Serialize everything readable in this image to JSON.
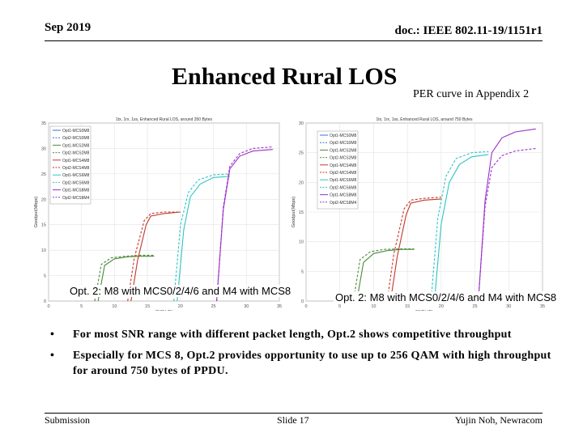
{
  "header": {
    "date": "Sep 2019",
    "doc": "doc.: IEEE 802.11-19/1151r1"
  },
  "slide": {
    "title": "Enhanced Rural LOS",
    "subtitle": "PER curve in Appendix 2"
  },
  "charts": [
    {
      "caption": "Opt. 2: M8 with MCS0/2/4/6 and M4 with MCS8"
    },
    {
      "caption": "Opt. 2: M8 with MCS0/2/4/6 and M4 with MCS8"
    }
  ],
  "chart_data": [
    {
      "type": "line",
      "title": "1tx, 1rx, 1ss, Enhanced Rural LOS, around 350 Bytes",
      "xlabel": "SNR(dB)",
      "ylabel": "Goodput(Mbps)",
      "xlim": [
        0,
        35
      ],
      "ylim": [
        0,
        35
      ],
      "xticks": [
        0,
        5,
        10,
        15,
        20,
        25,
        30,
        35
      ],
      "yticks": [
        0,
        5,
        10,
        15,
        20,
        25,
        30,
        35
      ],
      "grid": true,
      "legend_position": "top-left",
      "legend": [
        "Opt1-MCS0M8",
        "Opt2-MCS0M8",
        "Opt1-MCS2M8",
        "Opt2-MCS2M8",
        "Opt1-MCS4M8",
        "Opt2-MCS4M8",
        "Opt1-MCS6M8",
        "Opt2-MCS6M8",
        "Opt1-MCS8M8",
        "Opt2-MCS8M4"
      ],
      "series": [
        {
          "name": "Opt1-MCS2M8",
          "color": "#4b8b3b",
          "dash": false,
          "x": [
            7.5,
            8.5,
            10,
            12,
            14,
            16
          ],
          "y": [
            0,
            7,
            8.3,
            8.7,
            8.8,
            8.8
          ]
        },
        {
          "name": "Opt2-MCS2M8",
          "color": "#4b8b3b",
          "dash": true,
          "x": [
            7,
            8,
            9.5,
            11.5,
            14,
            16
          ],
          "y": [
            0,
            7.2,
            8.5,
            8.8,
            9,
            9
          ]
        },
        {
          "name": "Opt1-MCS4M8",
          "color": "#c0392b",
          "dash": false,
          "x": [
            12.5,
            13.5,
            14.8,
            15.5,
            17.5,
            20
          ],
          "y": [
            0,
            8,
            15,
            16.7,
            17.2,
            17.5
          ]
        },
        {
          "name": "Opt2-MCS4M8",
          "color": "#c0392b",
          "dash": true,
          "x": [
            12,
            13,
            14.5,
            15.5,
            17.5,
            20
          ],
          "y": [
            0,
            8.5,
            15.8,
            17.2,
            17.5,
            17.5
          ]
        },
        {
          "name": "Opt1-MCS6M8",
          "color": "#2ec4c4",
          "dash": false,
          "x": [
            19.5,
            20.5,
            21.5,
            23,
            25,
            27.5
          ],
          "y": [
            0,
            14,
            20.5,
            23,
            24.3,
            24.5
          ]
        },
        {
          "name": "Opt2-MCS6M8",
          "color": "#2ec4c4",
          "dash": true,
          "x": [
            19,
            20,
            21.2,
            22.7,
            25,
            27.5
          ],
          "y": [
            0,
            15,
            21.3,
            23.8,
            24.8,
            25
          ]
        },
        {
          "name": "Opt1-MCS8M8",
          "color": "#9b30c8",
          "dash": false,
          "x": [
            25.5,
            26.5,
            27.5,
            29,
            31,
            34
          ],
          "y": [
            0,
            18,
            26,
            28.5,
            29.5,
            29.8
          ]
        },
        {
          "name": "Opt2-MCS8M4",
          "color": "#9b30c8",
          "dash": true,
          "x": [
            25.5,
            26.5,
            27.5,
            29,
            31,
            34
          ],
          "y": [
            0,
            18.5,
            26.5,
            29,
            30,
            30.3
          ]
        }
      ]
    },
    {
      "type": "line",
      "title": "1tx, 1rx, 1ss, Enhanced Rural LOS, around 750 Bytes",
      "xlabel": "SNR(dB)",
      "ylabel": "Goodput(Mbps)",
      "xlim": [
        0,
        35
      ],
      "ylim": [
        0,
        30
      ],
      "xticks": [
        0,
        5,
        10,
        15,
        20,
        25,
        30,
        35
      ],
      "yticks": [
        0,
        5,
        10,
        15,
        20,
        25,
        30
      ],
      "grid": true,
      "legend_position": "top-right",
      "legend": [
        "Opt1-MCS0M8",
        "Opt2-MCS0M8",
        "Opt1-MCS2M8",
        "Opt2-MCS2M8",
        "Opt1-MCS4M8",
        "Opt2-MCS4M8",
        "Opt1-MCS6M8",
        "Opt2-MCS6M8",
        "Opt1-MCS8M8",
        "Opt2-MCS8M4"
      ],
      "series": [
        {
          "name": "Opt1-MCS2M8",
          "color": "#4b8b3b",
          "dash": false,
          "x": [
            7.5,
            8.5,
            10,
            12,
            14,
            16
          ],
          "y": [
            0,
            6.5,
            8,
            8.5,
            8.7,
            8.7
          ]
        },
        {
          "name": "Opt2-MCS2M8",
          "color": "#4b8b3b",
          "dash": true,
          "x": [
            7,
            8,
            9.5,
            11.5,
            14,
            16
          ],
          "y": [
            0,
            7,
            8.3,
            8.7,
            8.8,
            8.8
          ]
        },
        {
          "name": "Opt1-MCS4M8",
          "color": "#c0392b",
          "dash": false,
          "x": [
            12.5,
            13.5,
            14.8,
            15.5,
            17.5,
            20
          ],
          "y": [
            0,
            7.5,
            14.5,
            16.5,
            17,
            17.2
          ]
        },
        {
          "name": "Opt2-MCS4M8",
          "color": "#c0392b",
          "dash": true,
          "x": [
            12,
            13,
            14.5,
            15.5,
            17.5,
            20
          ],
          "y": [
            0,
            8,
            15.5,
            17,
            17.3,
            17.5
          ]
        },
        {
          "name": "Opt1-MCS6M8",
          "color": "#2ec4c4",
          "dash": false,
          "x": [
            19,
            20,
            21.2,
            22.7,
            24.5,
            27
          ],
          "y": [
            0,
            13,
            20,
            23,
            24.3,
            24.7
          ]
        },
        {
          "name": "Opt2-MCS6M8",
          "color": "#2ec4c4",
          "dash": true,
          "x": [
            18.5,
            19.5,
            20.7,
            22.2,
            24.5,
            27
          ],
          "y": [
            0,
            14,
            21,
            24,
            25,
            25.2
          ]
        },
        {
          "name": "Opt1-MCS8M8",
          "color": "#9b30c8",
          "dash": false,
          "x": [
            25.5,
            26.5,
            27.5,
            29,
            31,
            34
          ],
          "y": [
            0,
            17,
            25,
            27.5,
            28.5,
            29
          ]
        },
        {
          "name": "Opt2-MCS8M4",
          "color": "#9b30c8",
          "dash": true,
          "x": [
            25.5,
            26.5,
            27.5,
            29,
            31,
            34
          ],
          "y": [
            0,
            16,
            22.5,
            24.5,
            25.3,
            25.7
          ]
        }
      ]
    }
  ],
  "bullets": [
    {
      "symbol": "•",
      "text": "For most SNR range with different packet length, Opt.2 shows competitive throughput"
    },
    {
      "symbol": "•",
      "text": "Especially for MCS 8, Opt.2 provides opportunity to use up to 256 QAM with high throughput for around 750 bytes of PPDU."
    }
  ],
  "footer": {
    "left": "Submission",
    "center": "Slide 17",
    "right": "Yujin Noh, Newracom"
  }
}
